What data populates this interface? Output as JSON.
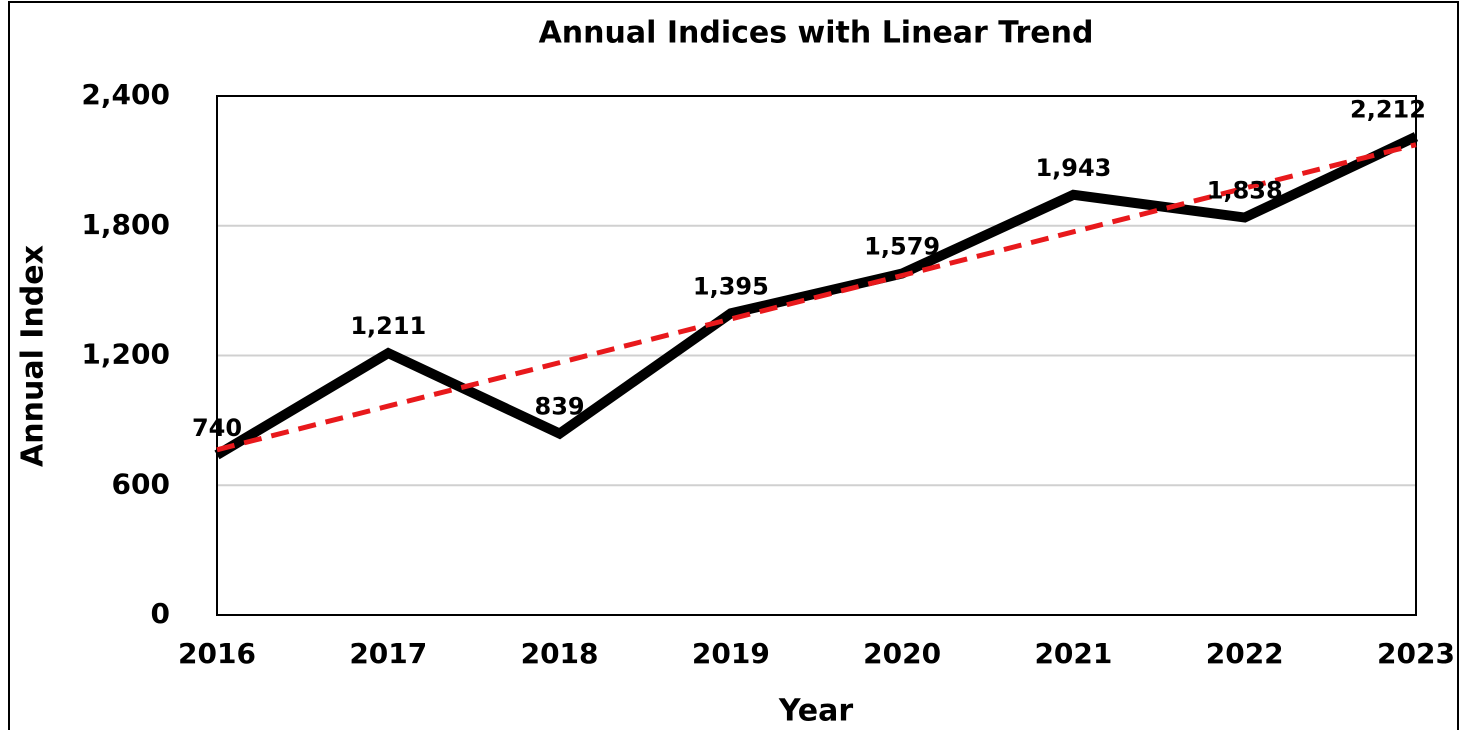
{
  "chart_data": {
    "type": "line",
    "title": "Annual Indices with Linear Trend",
    "x_label": "Year",
    "y_label": "Annual Index",
    "categories": [
      "2016",
      "2017",
      "2018",
      "2019",
      "2020",
      "2021",
      "2022",
      "2023"
    ],
    "values": [
      740,
      1211,
      839,
      1395,
      1579,
      1943,
      1838,
      2212
    ],
    "value_labels": [
      "740",
      "1,211",
      "839",
      "1,395",
      "1,579",
      "1,943",
      "1,838",
      "2,212"
    ],
    "color": "#000000",
    "trend": {
      "values": [
        764,
        966,
        1167,
        1369,
        1570,
        1772,
        1974,
        2175
      ],
      "color": "#e8191c"
    },
    "ylim": [
      0,
      2400
    ],
    "yticks": [
      0,
      600,
      {
        "value": 1200,
        "label": "1,200"
      },
      {
        "value": 1800,
        "label": "1,800"
      },
      {
        "value": 2400,
        "label": "2,400"
      }
    ],
    "grid": true
  }
}
